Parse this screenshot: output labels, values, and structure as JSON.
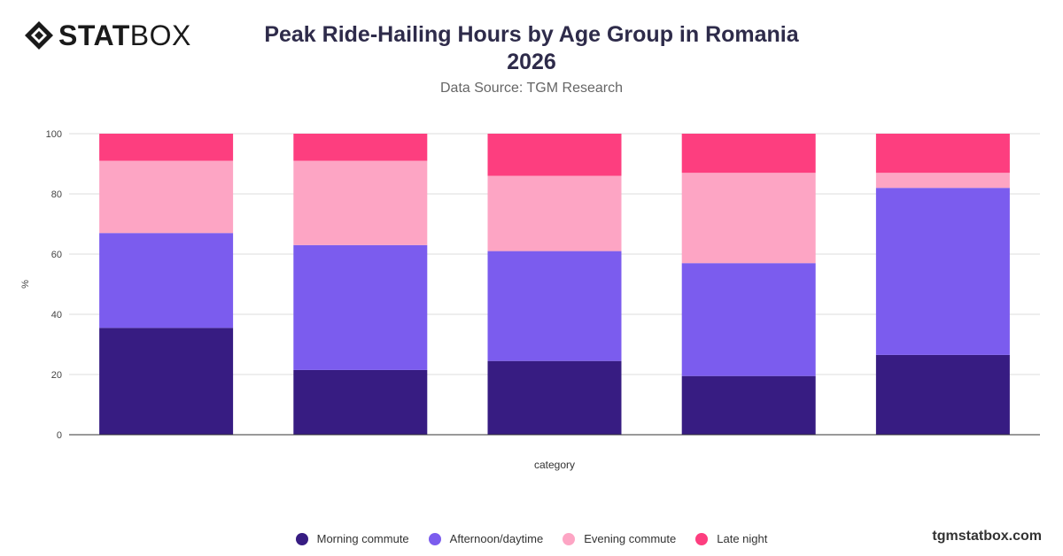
{
  "brand": {
    "logo_bold": "STAT",
    "logo_light": "BOX"
  },
  "header": {
    "title_line1": "Peak Ride-Hailing Hours by Age Group in Romania",
    "title_line2": "2026",
    "subtitle": "Data Source: TGM Research"
  },
  "footer": {
    "site": "tgmstatbox.com"
  },
  "chart_data": {
    "type": "bar",
    "stacked": true,
    "title": "Peak Ride-Hailing Hours by Age Group in Romania 2026",
    "subtitle": "Data Source: TGM Research",
    "xlabel": "category",
    "ylabel": "%",
    "ylim": [
      0,
      100
    ],
    "yticks": [
      0,
      20,
      40,
      60,
      80,
      100
    ],
    "grid": true,
    "legend_position": "bottom",
    "categories": [
      "",
      "",
      "",
      "",
      ""
    ],
    "series": [
      {
        "name": "Morning commute",
        "color": "#371c82",
        "values": [
          35.5,
          21.5,
          24.5,
          19.5,
          26.5
        ]
      },
      {
        "name": "Afternoon/daytime",
        "color": "#7b5cee",
        "values": [
          31.5,
          41.5,
          36.5,
          37.5,
          55.5
        ]
      },
      {
        "name": "Evening commute",
        "color": "#fda5c4",
        "values": [
          24,
          28,
          25,
          30,
          5
        ]
      },
      {
        "name": "Late night",
        "color": "#fd3e7f",
        "values": [
          9,
          9,
          14,
          13,
          13
        ]
      }
    ]
  }
}
